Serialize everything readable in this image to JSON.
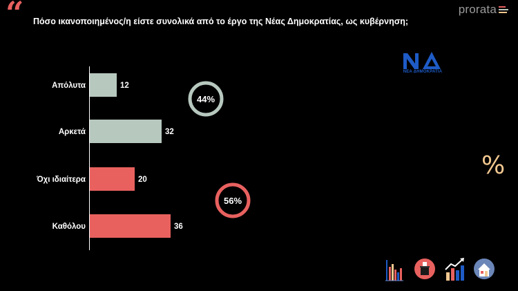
{
  "header": {
    "quote_glyph": "“",
    "question": "Πόσο ικανοποιημένος/η είστε συνολικά από το έργο της Νέας Δημοκρατίας, ως κυβέρνηση;"
  },
  "brand": {
    "name": "prorata",
    "mark_colors": [
      "#e8615f",
      "#b7c8bf",
      "#f2c890"
    ]
  },
  "party_logo": {
    "letters": "ΝΔ",
    "caption": "ΝΕΑ ΔΗΜΟΚΡΑΤΙΑ",
    "color": "#1e5bc6"
  },
  "chart_data": {
    "type": "bar",
    "orientation": "horizontal",
    "categories": [
      "Απόλυτα",
      "Αρκετά",
      "Όχι ιδιαίτερα",
      "Καθόλου"
    ],
    "values": [
      12,
      32,
      20,
      36
    ],
    "bar_colors": [
      "#b7c8bf",
      "#b7c8bf",
      "#e8615f",
      "#e8615f"
    ],
    "xlim": [
      0,
      40
    ],
    "grid": false,
    "group_totals": [
      {
        "label": "44%",
        "color": "#b7c8bf"
      },
      {
        "label": "56%",
        "color": "#e8615f"
      }
    ]
  },
  "side_icon": {
    "name": "percent-icon",
    "glyph": "%"
  },
  "footer_icons": [
    "bar-chart-icon",
    "ballot-box-icon",
    "trend-up-chart-icon",
    "house-icon"
  ]
}
